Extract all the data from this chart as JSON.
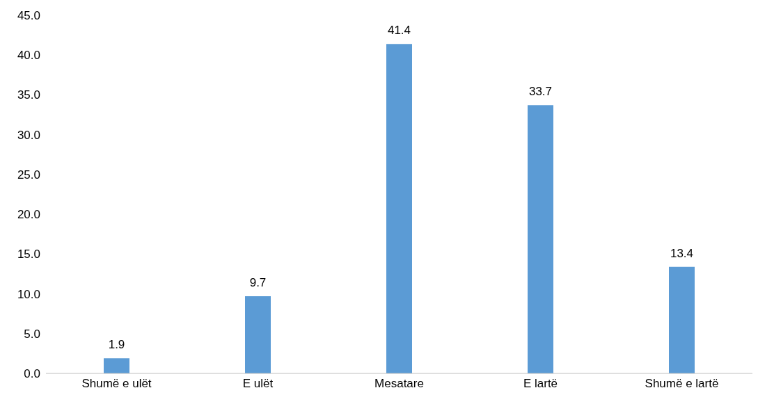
{
  "chart_data": {
    "type": "bar",
    "categories": [
      "Shumë e ulët",
      "E ulët",
      "Mesatare",
      "E lartë",
      "Shumë e lartë"
    ],
    "values": [
      1.9,
      9.7,
      41.4,
      33.7,
      13.4
    ],
    "color": "#5b9bd5",
    "ylim": [
      0,
      45
    ],
    "yticks": [
      {
        "value": 0,
        "label": "0.0"
      },
      {
        "value": 5,
        "label": "5.0"
      },
      {
        "value": 10,
        "label": "10.0"
      },
      {
        "value": 15,
        "label": "15.0"
      },
      {
        "value": 20,
        "label": "20.0"
      },
      {
        "value": 25,
        "label": "25.0"
      },
      {
        "value": 30,
        "label": "30.0"
      },
      {
        "value": 35,
        "label": "35.0"
      },
      {
        "value": 40,
        "label": "40.0"
      },
      {
        "value": 45,
        "label": "45.0"
      }
    ],
    "grid": false,
    "data_labels": true
  }
}
